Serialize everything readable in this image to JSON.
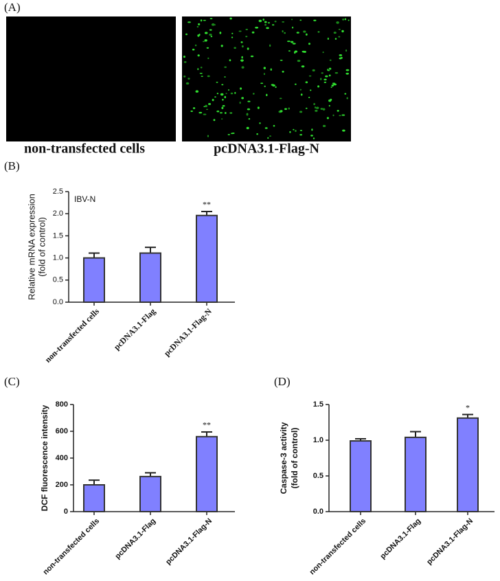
{
  "panel_a": {
    "label": "(A)",
    "images": [
      {
        "caption": "non-transfected cells"
      },
      {
        "caption": "pcDNA3.1-Flag-N"
      }
    ]
  },
  "chart_data": [
    {
      "type": "bar",
      "label": "(B)",
      "annotation": "IBV-N",
      "ylabel": [
        "Relative mRNA expression",
        "(fold of control)"
      ],
      "categories": [
        "non-transfected cells",
        "pcDNA3.1-Flag",
        "pcDNA3.1-Flag-N"
      ],
      "values": [
        1.0,
        1.11,
        1.96
      ],
      "errors": [
        0.11,
        0.13,
        0.09
      ],
      "significance": [
        null,
        null,
        "**"
      ],
      "color": "#8080ff",
      "ylim": [
        0,
        2.5
      ],
      "yticks": [
        {
          "value": 0,
          "label": "0.0"
        },
        {
          "value": 0.5,
          "label": "0.5"
        },
        {
          "value": 1,
          "label": "1.0"
        },
        {
          "value": 1.5,
          "label": "1.5"
        },
        {
          "value": 2,
          "label": "2.0"
        },
        {
          "value": 2.5,
          "label": "2.5"
        }
      ]
    },
    {
      "type": "bar",
      "label": "(C)",
      "ylabel": [
        "DCF  fluorescence intensity"
      ],
      "categories": [
        "non-transfected cells",
        "pcDNA3.1-Flag",
        "pcDNA3.1-Flag-N"
      ],
      "values": [
        200,
        262,
        560
      ],
      "errors": [
        35,
        28,
        35
      ],
      "significance": [
        null,
        null,
        "**"
      ],
      "color": "#8080ff",
      "ylim": [
        0,
        800
      ],
      "yticks": [
        0,
        200,
        400,
        600,
        800
      ]
    },
    {
      "type": "bar",
      "label": "(D)",
      "ylabel": [
        "Caspase-3 activity",
        "(fold of control)"
      ],
      "categories": [
        "non-transfected cells",
        "pcDNA3.1-Flag",
        "pcDNA3.1-Flag-N"
      ],
      "values": [
        0.99,
        1.04,
        1.31
      ],
      "errors": [
        0.03,
        0.08,
        0.05
      ],
      "significance": [
        null,
        null,
        "*"
      ],
      "color": "#8080ff",
      "ylim": [
        0,
        1.5
      ],
      "yticks": [
        {
          "value": 0,
          "label": "0.0"
        },
        {
          "value": 0.5,
          "label": "0.5"
        },
        {
          "value": 1,
          "label": "1.0"
        },
        {
          "value": 1.5,
          "label": "1.5"
        }
      ]
    }
  ]
}
